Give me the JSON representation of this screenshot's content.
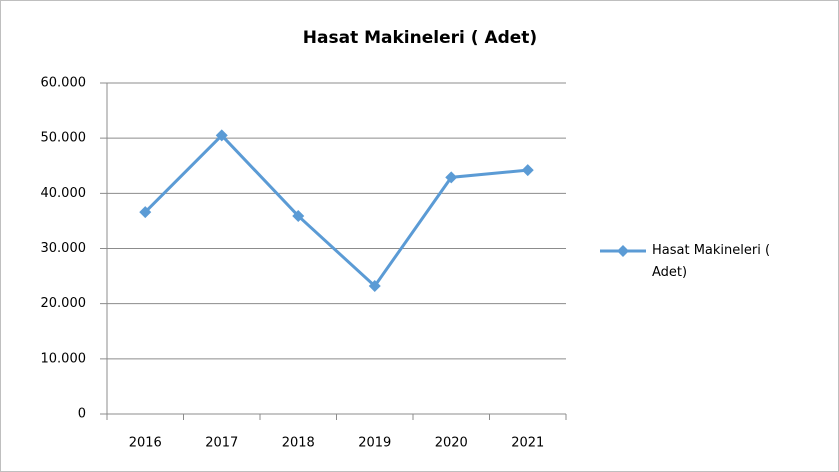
{
  "chart_data": {
    "type": "line",
    "title": "Hasat Makineleri ( Adet)",
    "categories": [
      "2016",
      "2017",
      "2018",
      "2019",
      "2020",
      "2021"
    ],
    "series": [
      {
        "name": "Hasat Makineleri ( Adet)",
        "color": "#5b9bd5",
        "values": [
          36600,
          50500,
          35900,
          23200,
          42900,
          44200
        ]
      }
    ],
    "ylim": [
      0,
      60000
    ],
    "yticks": [
      0,
      {
        "value": 10000,
        "label": "10.000"
      },
      {
        "value": 20000,
        "label": "20.000"
      },
      {
        "value": 30000,
        "label": "30.000"
      },
      {
        "value": 40000,
        "label": "40.000"
      },
      {
        "value": 50000,
        "label": "50.000"
      },
      {
        "value": 60000,
        "label": "60.000"
      }
    ],
    "grid": true,
    "legend": "right"
  }
}
